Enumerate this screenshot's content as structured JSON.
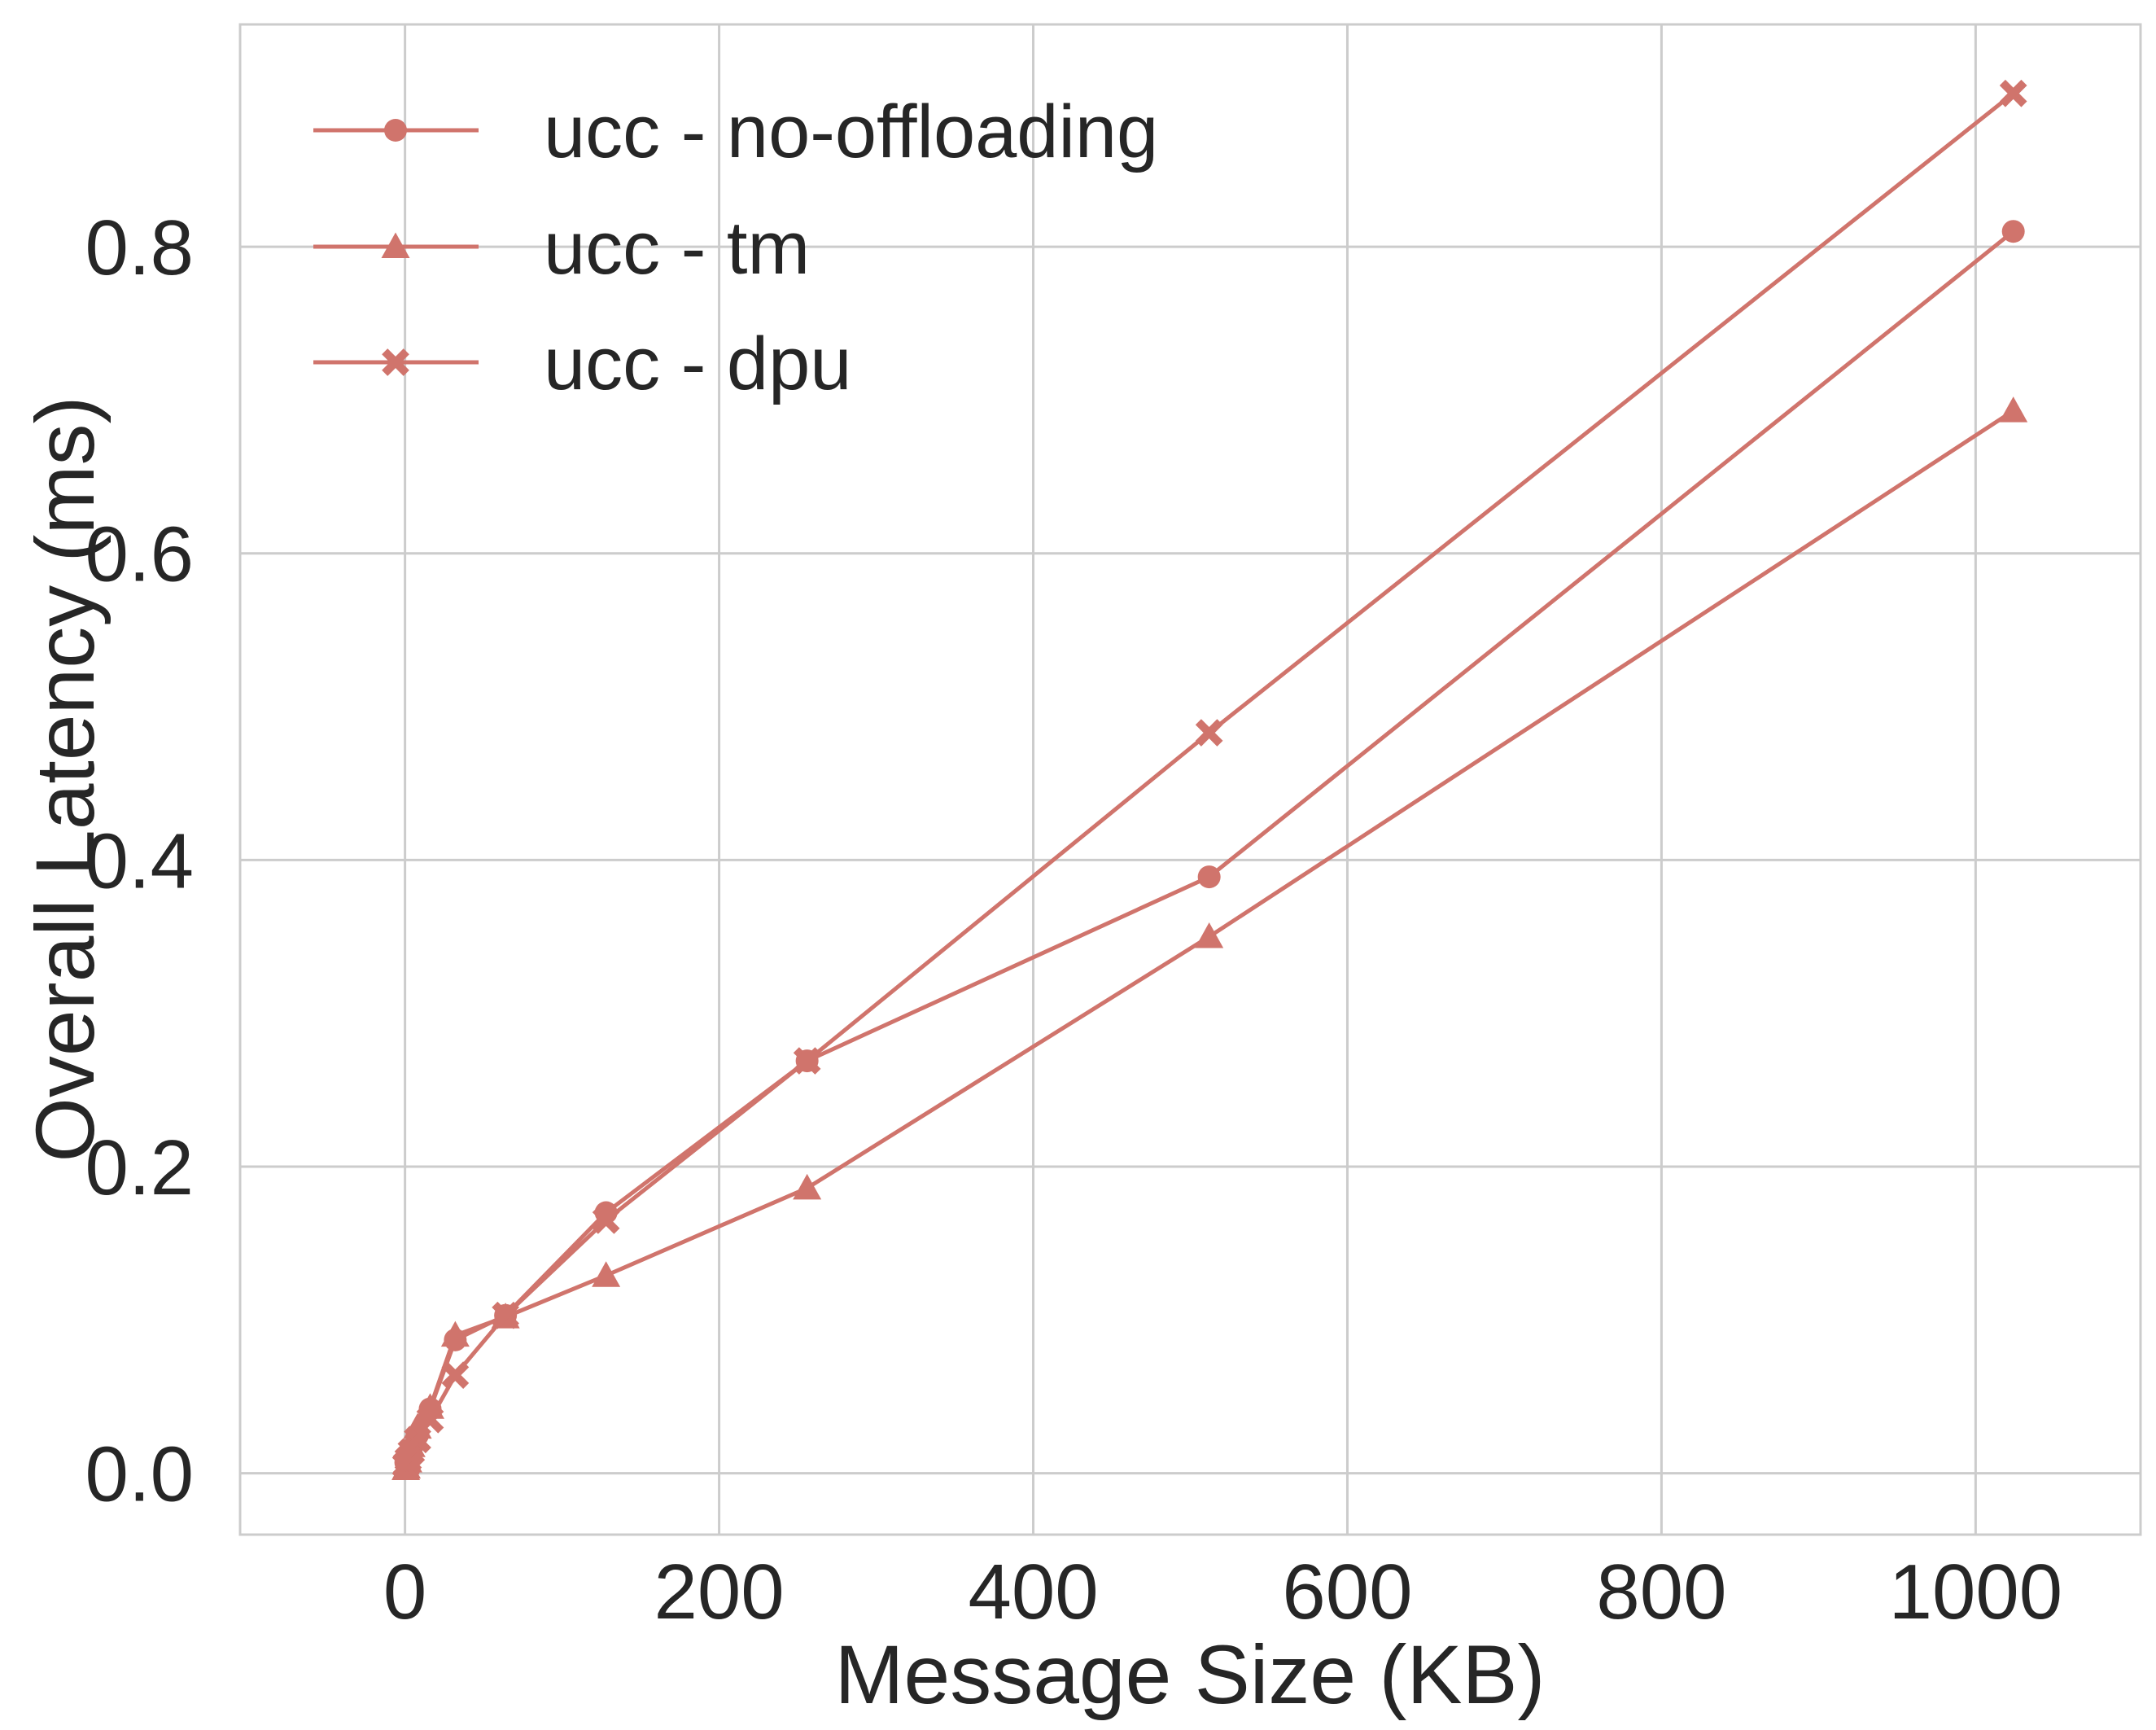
{
  "chart_data": {
    "type": "line",
    "xlabel": "Message Size (KB)",
    "ylabel": "Overall Latency (ms)",
    "xlim": [
      -105,
      1105
    ],
    "ylim": [
      -0.04,
      0.945
    ],
    "xticks": [
      0,
      200,
      400,
      600,
      800,
      1000
    ],
    "yticks": [
      0.0,
      0.2,
      0.4,
      0.6,
      0.8
    ],
    "grid": true,
    "legend_position": "top-left",
    "color": "#d0746c",
    "series": [
      {
        "name": "ucc - no-offloading",
        "marker": "circle",
        "x": [
          0.5,
          1,
          2,
          4,
          8,
          16,
          32,
          64,
          128,
          256,
          512,
          1024
        ],
        "y": [
          0.007,
          0.008,
          0.01,
          0.016,
          0.025,
          0.042,
          0.087,
          0.103,
          0.17,
          0.269,
          0.389,
          0.81
        ]
      },
      {
        "name": "ucc - tm",
        "marker": "triangle",
        "x": [
          0.5,
          1,
          2,
          4,
          8,
          16,
          32,
          64,
          128,
          256,
          512,
          1024
        ],
        "y": [
          0.003,
          0.004,
          0.008,
          0.018,
          0.03,
          0.043,
          0.09,
          0.102,
          0.129,
          0.186,
          0.35,
          0.693
        ]
      },
      {
        "name": "ucc - dpu",
        "marker": "x",
        "x": [
          0.5,
          1,
          2,
          4,
          8,
          16,
          32,
          64,
          128,
          256,
          512,
          1024
        ],
        "y": [
          0.005,
          0.006,
          0.009,
          0.014,
          0.022,
          0.035,
          0.064,
          0.103,
          0.165,
          0.269,
          0.483,
          0.9
        ]
      }
    ]
  }
}
